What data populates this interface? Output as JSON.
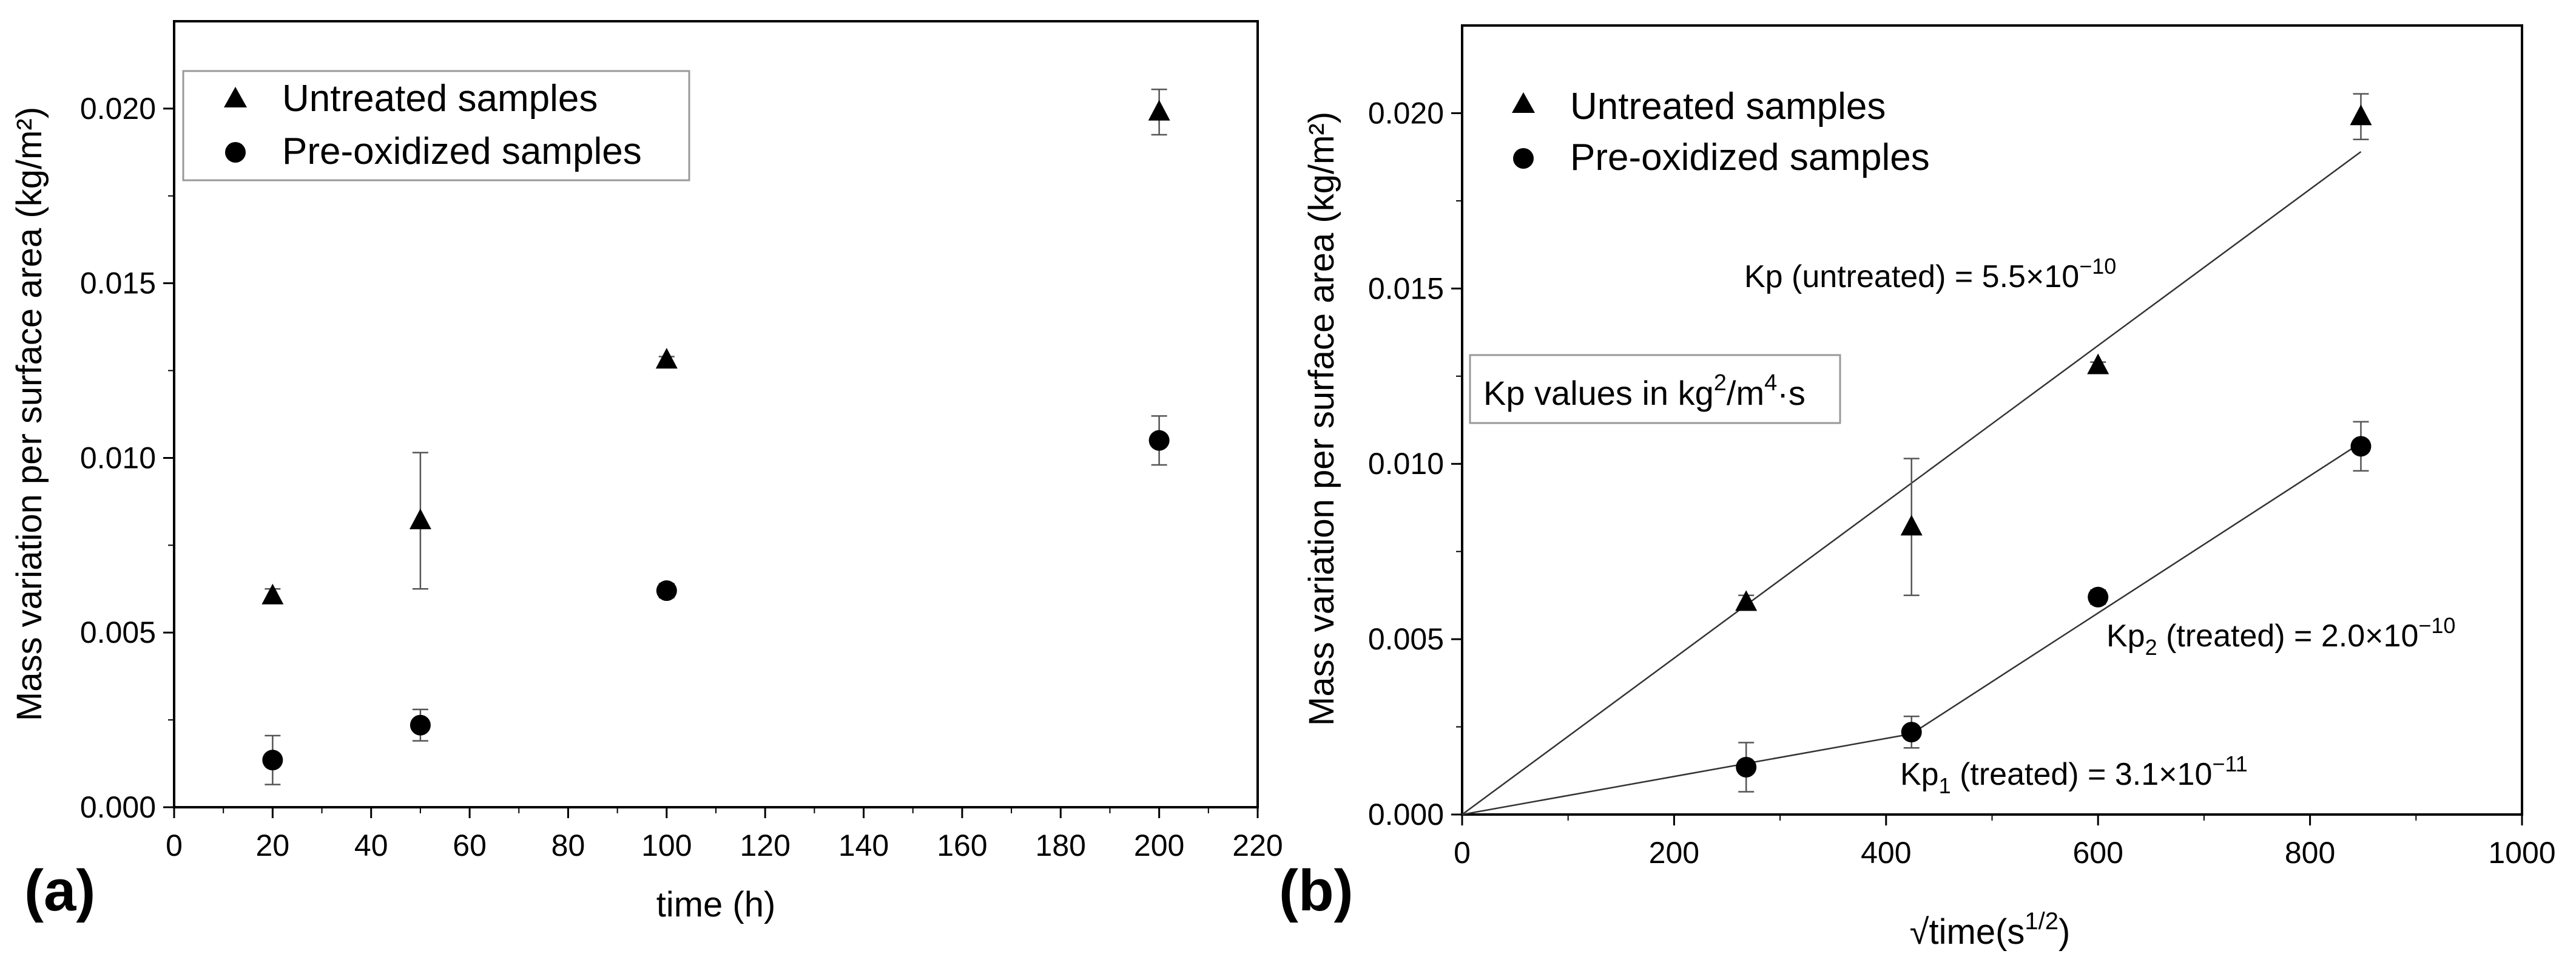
{
  "chart_data": [
    {
      "type": "scatter",
      "panel_label": "(a)",
      "xlabel": "time (h)",
      "ylabel": "Mass variation per surface area (kg/m²)",
      "xlim": [
        0,
        220
      ],
      "ylim": [
        0,
        0.0225
      ],
      "x_ticks": [
        0,
        20,
        40,
        60,
        80,
        100,
        120,
        140,
        160,
        180,
        200,
        220
      ],
      "x_tick_labels": [
        "0",
        "20",
        "40",
        "60",
        "80",
        "100",
        "120",
        "140",
        "160",
        "180",
        "200",
        "220"
      ],
      "y_ticks": [
        0,
        0.005,
        0.01,
        0.015,
        0.02
      ],
      "y_tick_labels": [
        "0.000",
        "0.005",
        "0.010",
        "0.015",
        "0.020"
      ],
      "legend_position": "top-left",
      "series": [
        {
          "name": "Untreated samples",
          "marker": "triangle",
          "x": [
            20,
            50,
            100,
            200
          ],
          "y": [
            0.00605,
            0.0082,
            0.0128,
            0.0199
          ],
          "yerr": [
            0.0002,
            0.00195,
            0.0001,
            0.00065
          ]
        },
        {
          "name": "Pre-oxidized samples",
          "marker": "circle",
          "x": [
            20,
            50,
            100,
            200
          ],
          "y": [
            0.00135,
            0.00235,
            0.0062,
            0.0105
          ],
          "yerr": [
            0.0007,
            0.00045,
            0.0002,
            0.0007
          ]
        }
      ]
    },
    {
      "type": "scatter",
      "panel_label": "(b)",
      "xlabel": "√time(s",
      "xlabel_sup": "1/2",
      "xlabel_close": ")",
      "ylabel": "Mass variation per surface area (kg/m²)",
      "xlim": [
        0,
        1000
      ],
      "ylim": [
        0,
        0.0225
      ],
      "x_ticks": [
        0,
        200,
        400,
        600,
        800,
        1000
      ],
      "x_tick_labels": [
        "0",
        "200",
        "400",
        "600",
        "800",
        "1000"
      ],
      "y_ticks": [
        0,
        0.005,
        0.01,
        0.015,
        0.02
      ],
      "y_tick_labels": [
        "0.000",
        "0.005",
        "0.010",
        "0.015",
        "0.020"
      ],
      "legend_position": "top-left",
      "series": [
        {
          "name": "Untreated samples",
          "marker": "triangle",
          "x": [
            268,
            424,
            600,
            848
          ],
          "y": [
            0.00605,
            0.0082,
            0.0128,
            0.0199
          ],
          "yerr": [
            0.0002,
            0.00195,
            0.0001,
            0.00065
          ]
        },
        {
          "name": "Pre-oxidized samples",
          "marker": "circle",
          "x": [
            268,
            424,
            600,
            848
          ],
          "y": [
            0.00135,
            0.00235,
            0.0062,
            0.0105
          ],
          "yerr": [
            0.0007,
            0.00045,
            0.0002,
            0.0007
          ]
        }
      ],
      "fit_lines": [
        {
          "name": "untreated-fit",
          "points": [
            [
              0,
              0
            ],
            [
              848,
              0.0189
            ]
          ]
        },
        {
          "name": "treated-fit-1",
          "points": [
            [
              0,
              0
            ],
            [
              424,
              0.0023
            ]
          ]
        },
        {
          "name": "treated-fit-2",
          "points": [
            [
              424,
              0.0023
            ],
            [
              848,
              0.0106
            ]
          ]
        }
      ],
      "box_annotation": {
        "text": "Kp values in kg",
        "sup1": "2",
        "mid": "/m",
        "sup2": "4",
        "tail": "·s"
      },
      "annotations": [
        {
          "name": "kp-untreated",
          "prefix": "Kp",
          "sub": "",
          "text": " (untreated) = 5.5×10",
          "exp": "−10"
        },
        {
          "name": "kp2-treated",
          "prefix": "Kp",
          "sub": "2",
          "text": " (treated) = 2.0×10",
          "exp": "−10"
        },
        {
          "name": "kp1-treated",
          "prefix": "Kp",
          "sub": "1",
          "text": " (treated) = 3.1×10",
          "exp": "−11"
        }
      ]
    }
  ]
}
